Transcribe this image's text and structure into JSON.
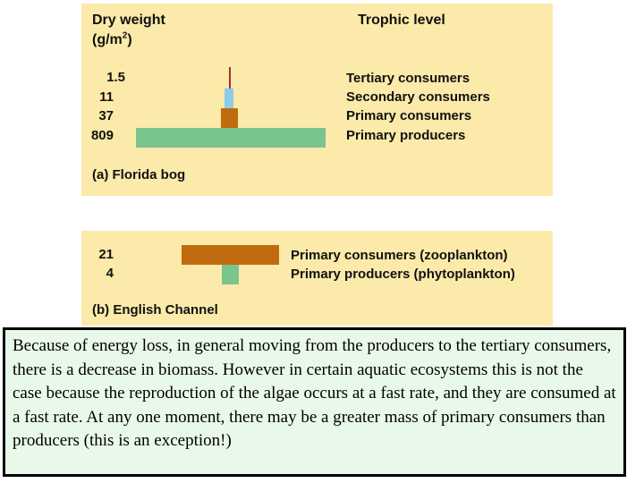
{
  "panel_a": {
    "header_left_line1": "Dry weight",
    "header_left_line2_prefix": "(g/m",
    "header_left_line2_sup": "2",
    "header_left_line2_suffix": ")",
    "header_right": "Trophic level",
    "rows": [
      {
        "value": "1.5",
        "label": "Tertiary consumers",
        "color": "#a0303a"
      },
      {
        "value": "11",
        "label": "Secondary consumers",
        "color": "#8ecbea"
      },
      {
        "value": "37",
        "label": "Primary consumers",
        "color": "#c06b0f"
      },
      {
        "value": "809",
        "label": "Primary producers",
        "color": "#7ac48e"
      }
    ],
    "caption": "(a) Florida bog"
  },
  "panel_b": {
    "rows": [
      {
        "value": "21",
        "label": "Primary consumers (zooplankton)",
        "color": "#c06b0f"
      },
      {
        "value": "4",
        "label": "Primary producers (phytoplankton)",
        "color": "#7ac48e"
      }
    ],
    "caption": "(b) English Channel"
  },
  "explanation": "Because of energy loss, in general moving from the producers to the tertiary consumers, there is a decrease in biomass.  However in certain aquatic ecosystems this is not the case because the reproduction of the algae occurs at a fast rate, and they are consumed at a fast rate.  At any one moment, there may be a greater mass of primary consumers than producers (this is an exception!)",
  "colors": {
    "panel_bg": "#fbeaa9",
    "textbox_bg": "#e9f9e9"
  }
}
